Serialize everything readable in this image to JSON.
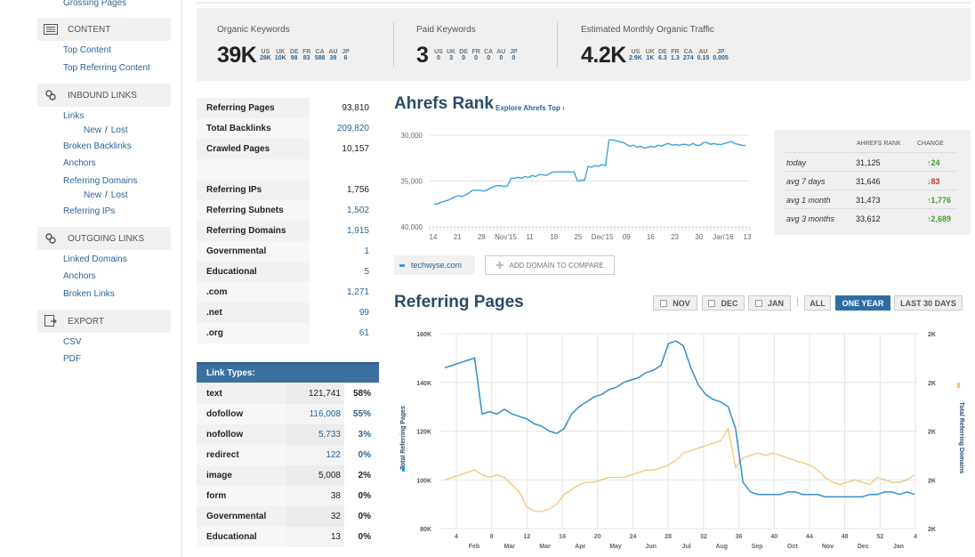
{
  "sidebar": {
    "top_link": "Grossing Pages",
    "sections": [
      {
        "id": "content",
        "label": "CONTENT",
        "icon": "document-list-icon",
        "links": [
          "Top Content",
          "Top Referring Content"
        ]
      },
      {
        "id": "inbound",
        "label": "INBOUND LINKS",
        "icon": "chain-link-icon"
      },
      {
        "id": "outgoing",
        "label": "OUTGOING LINKS",
        "icon": "chain-link-icon",
        "links": [
          "Linked Domains",
          "Anchors",
          "Broken Links"
        ]
      },
      {
        "id": "export",
        "label": "EXPORT",
        "icon": "export-icon",
        "links": [
          "CSV",
          "PDF"
        ]
      }
    ],
    "inbound_links": {
      "links": "Links",
      "new": "New",
      "sep": "/",
      "lost": "Lost",
      "broken_backlinks": "Broken Backlinks",
      "anchors": "Anchors",
      "referring_domains": "Referring Domains",
      "referring_ips": "Referring IPs"
    }
  },
  "metrics": {
    "organic": {
      "title": "Organic Keywords",
      "value": "39K",
      "geo": [
        {
          "c": "US",
          "v": "28K"
        },
        {
          "c": "UK",
          "v": "10K"
        },
        {
          "c": "DE",
          "v": "98"
        },
        {
          "c": "FR",
          "v": "83"
        },
        {
          "c": "CA",
          "v": "588"
        },
        {
          "c": "AU",
          "v": "39"
        },
        {
          "c": "JP",
          "v": "6"
        }
      ]
    },
    "paid": {
      "title": "Paid Keywords",
      "value": "3",
      "geo": [
        {
          "c": "US",
          "v": "0"
        },
        {
          "c": "UK",
          "v": "3"
        },
        {
          "c": "DE",
          "v": "0"
        },
        {
          "c": "FR",
          "v": "0"
        },
        {
          "c": "CA",
          "v": "0"
        },
        {
          "c": "AU",
          "v": "0"
        },
        {
          "c": "JP",
          "v": "0"
        }
      ]
    },
    "traffic": {
      "title": "Estimated Monthly Organic Traffic",
      "value": "4.2K",
      "geo": [
        {
          "c": "US",
          "v": "2.9K"
        },
        {
          "c": "UK",
          "v": "1K"
        },
        {
          "c": "DE",
          "v": "6.3"
        },
        {
          "c": "FR",
          "v": "1.3"
        },
        {
          "c": "CA",
          "v": "274"
        },
        {
          "c": "AU",
          "v": "0.15"
        },
        {
          "c": "JP",
          "v": "0.005"
        }
      ]
    }
  },
  "stats": [
    {
      "k": "Referring Pages",
      "v": "93,810",
      "link": false
    },
    {
      "k": "Total Backlinks",
      "v": "209,820",
      "link": true
    },
    {
      "k": "Crawled Pages",
      "v": "10,157",
      "link": false
    },
    {
      "k": "",
      "v": "",
      "link": false
    },
    {
      "k": "Referring IPs",
      "v": "1,756",
      "link": false
    },
    {
      "k": "Referring Subnets",
      "v": "1,502",
      "link": true
    },
    {
      "k": "Referring Domains",
      "v": "1,915",
      "link": true
    },
    {
      "k": "Governmental",
      "v": "1",
      "link": true
    },
    {
      "k": "Educational",
      "v": "5",
      "link": true
    },
    {
      "k": ".com",
      "v": "1,271",
      "link": true
    },
    {
      "k": ".net",
      "v": "99",
      "link": true
    },
    {
      "k": ".org",
      "v": "61",
      "link": true
    }
  ],
  "link_types": {
    "title": "Link Types:",
    "rows": [
      {
        "k": "text",
        "n": "121,741",
        "p": "58%",
        "link": false
      },
      {
        "k": "dofollow",
        "n": "116,008",
        "p": "55%",
        "link": true
      },
      {
        "k": "nofollow",
        "n": "5,733",
        "p": "3%",
        "link": true
      },
      {
        "k": "redirect",
        "n": "122",
        "p": "0%",
        "link": true
      },
      {
        "k": "image",
        "n": "5,008",
        "p": "2%",
        "link": false
      },
      {
        "k": "form",
        "n": "38",
        "p": "0%",
        "link": false
      },
      {
        "k": "Governmental",
        "n": "32",
        "p": "0%",
        "link": false
      },
      {
        "k": "Educational",
        "n": "13",
        "p": "0%",
        "link": false
      }
    ]
  },
  "ahrefs_rank": {
    "title": "Ahrefs Rank",
    "explore_link": "Explore Ahrefs Top ›",
    "table_headers": [
      "AHREFS RANK",
      "CHANGE"
    ],
    "rows": [
      {
        "k": "today",
        "v": "31,125",
        "c": "↑24",
        "dir": "up"
      },
      {
        "k": "avg 7 days",
        "v": "31,646",
        "c": "↓83",
        "dir": "down"
      },
      {
        "k": "avg 1 month",
        "v": "31,473",
        "c": "↑1,776",
        "dir": "up"
      },
      {
        "k": "avg 3 months",
        "v": "33,612",
        "c": "↑2,689",
        "dir": "up"
      }
    ]
  },
  "compare": {
    "domain": "techwyse.com",
    "add_label": "ADD DOMAIN TO COMPARE"
  },
  "referring_pages": {
    "title": "Referring Pages",
    "buttons": [
      {
        "label": "NOV",
        "checkbox": true,
        "active": false
      },
      {
        "label": "DEC",
        "checkbox": true,
        "active": false
      },
      {
        "label": "JAN",
        "checkbox": true,
        "active": false
      },
      {
        "label": "ALL",
        "checkbox": false,
        "active": false
      },
      {
        "label": "ONE YEAR",
        "checkbox": false,
        "active": true
      },
      {
        "label": "LAST 30 DAYS",
        "checkbox": false,
        "active": false
      }
    ],
    "separator": "|"
  },
  "colors": {
    "rank_line": "#3aa3dc",
    "pages_line": "#2e8fd0",
    "domains_line": "#f5c26b",
    "accent": "#2f6ea4"
  },
  "chart_data": [
    {
      "type": "line",
      "title": "Ahrefs Rank",
      "y_ticks": [
        "30,000",
        "35,000",
        "40,000"
      ],
      "y_inverted": true,
      "ylim": [
        30000,
        40000
      ],
      "x_tick_labels": [
        "14",
        "21",
        "28",
        "Nov'15",
        "11",
        "18",
        "25",
        "Dec'15",
        "09",
        "16",
        "23",
        "30",
        "Jan'16",
        "13"
      ],
      "series": [
        {
          "values": [
            37500,
            37500,
            37300,
            37200,
            37100,
            36900,
            36700,
            36600,
            36700,
            36500,
            36300,
            36000,
            36000,
            36000,
            36100,
            36000,
            35800,
            35600,
            35500,
            35500,
            35600,
            35500,
            34700,
            34700,
            34600,
            34700,
            34500,
            34600,
            34400,
            34500,
            34300,
            34300,
            34400,
            34200,
            34000,
            34000,
            34000,
            34000,
            34000,
            34000,
            34000,
            35000,
            34900,
            34900,
            33400,
            33500,
            33300,
            33400,
            33200,
            33300,
            30500,
            30500,
            30600,
            30700,
            30800,
            31000,
            31200,
            31100,
            31300,
            31200,
            31400,
            31300,
            31200,
            31300,
            31100,
            31200,
            31000,
            30900,
            31100,
            31000,
            31100,
            31000,
            31000,
            31100,
            30900,
            31100,
            31100,
            30800,
            30800,
            31000,
            30900,
            31000,
            31000,
            30900,
            30800,
            30700,
            30900,
            31000,
            31100,
            31125
          ]
        }
      ]
    },
    {
      "type": "line",
      "title": "Referring Pages",
      "ylabel": "Total Referring Pages",
      "y2label": "Total Referring Domains",
      "ylim": [
        80000,
        160000
      ],
      "y_ticks": [
        "160K",
        "140K",
        "120K",
        "100K",
        "80K"
      ],
      "y2_ticks": [
        "2K",
        "2K",
        "2K",
        "2K",
        "2K"
      ],
      "x_week_labels": [
        "4",
        "8",
        "12",
        "16",
        "20",
        "24",
        "28",
        "32",
        "36",
        "40",
        "44",
        "48",
        "52",
        "4"
      ],
      "x_month_labels": [
        "Feb",
        "Mar",
        "Mar",
        "Apr",
        "May",
        "Jun",
        "Jul",
        "Aug",
        "Sep",
        "Oct",
        "Nov",
        "Dec",
        "Jan"
      ],
      "series": [
        {
          "name": "Total Referring Pages",
          "values": [
            146000,
            147000,
            148000,
            149000,
            150000,
            127000,
            128000,
            127000,
            129000,
            127000,
            126000,
            125000,
            123000,
            122000,
            120000,
            119000,
            121000,
            127000,
            130000,
            132000,
            134000,
            135000,
            137000,
            138000,
            140000,
            141000,
            142000,
            144000,
            145000,
            147000,
            156000,
            157000,
            155000,
            146000,
            139000,
            135000,
            133000,
            132000,
            130000,
            121000,
            99000,
            95000,
            94000,
            94000,
            94000,
            94000,
            95000,
            95000,
            94000,
            94000,
            94000,
            93000,
            93000,
            93000,
            93000,
            93000,
            93000,
            94000,
            94000,
            95000,
            95000,
            94000,
            95000,
            94000
          ]
        },
        {
          "name": "Total Referring Domains",
          "values": [
            100000,
            101000,
            102000,
            103000,
            104000,
            102000,
            101000,
            102000,
            101000,
            98000,
            95000,
            89000,
            87000,
            87000,
            88000,
            90000,
            94000,
            96000,
            98000,
            99000,
            99000,
            100000,
            101000,
            101000,
            101000,
            102000,
            103000,
            104000,
            104000,
            105000,
            106000,
            108000,
            111000,
            112000,
            113000,
            114000,
            115000,
            116000,
            121000,
            105000,
            109000,
            110000,
            111000,
            110000,
            111000,
            110000,
            109000,
            108000,
            107000,
            106000,
            104000,
            101000,
            99000,
            98000,
            99000,
            100000,
            99000,
            98000,
            101000,
            100000,
            99000,
            99000,
            100000,
            102000
          ]
        }
      ]
    }
  ]
}
